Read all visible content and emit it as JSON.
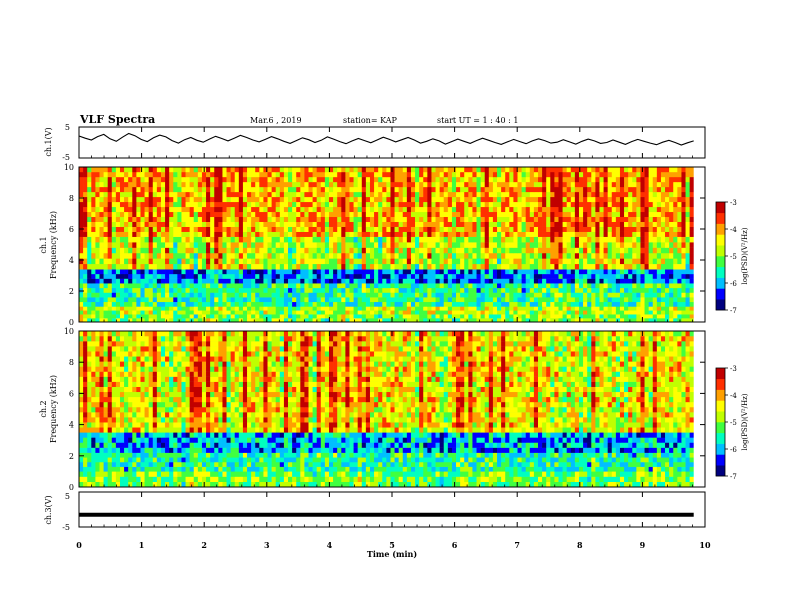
{
  "header": {
    "title": "VLF Spectra",
    "date": "Mar.6 , 2019",
    "station": "station= KAP",
    "start_ut": "start UT = 1 : 40 : 1"
  },
  "chart_data": [
    {
      "type": "line",
      "panel": "ch1-waveform",
      "ylabel": "ch.1(V)",
      "ylim": [
        -5,
        5
      ],
      "yticks": [
        "5",
        "-5"
      ],
      "xlim": [
        0,
        10
      ],
      "series": [
        {
          "values": [
            2.1,
            1.4,
            0.8,
            1.9,
            2.6,
            1.2,
            0.4,
            1.7,
            2.9,
            2.2,
            1.0,
            0.3,
            1.5,
            2.4,
            1.8,
            0.6,
            -0.2,
            0.9,
            1.6,
            0.7,
            0.1,
            1.1,
            2.0,
            1.3,
            0.5,
            1.4,
            2.3,
            1.6,
            0.8,
            0.2,
            1.0,
            1.9,
            1.2,
            0.4,
            -0.3,
            0.6,
            1.5,
            0.9,
            0.0,
            0.7,
            1.8,
            1.1,
            0.3,
            -0.4,
            0.5,
            1.3,
            0.6,
            -0.1,
            0.8,
            1.7,
            1.0,
            0.2,
            0.9,
            1.6,
            0.8,
            -0.2,
            0.4,
            1.2,
            0.5,
            -0.5,
            0.3,
            1.1,
            0.4,
            -0.3,
            0.6,
            1.4,
            0.7,
            0.0,
            -0.6,
            0.2,
            1.0,
            0.3,
            -0.4,
            0.5,
            1.2,
            0.6,
            -0.2,
            0.1,
            0.9,
            0.2,
            -0.5,
            0.4,
            1.1,
            0.5,
            -0.3,
            0.0,
            0.8,
            0.1,
            -0.6,
            0.3,
            1.0,
            0.4,
            -0.2,
            -0.7,
            0.1,
            0.7,
            0.0,
            -0.8,
            -0.1,
            0.5
          ]
        }
      ]
    },
    {
      "type": "heatmap",
      "panel": "ch1-spectrogram",
      "title": "ch.1",
      "ylabel": "Frequency (kHz)",
      "ylim": [
        0,
        10
      ],
      "yticks": [
        "0",
        "2",
        "4",
        "6",
        "8",
        "10"
      ],
      "xlim": [
        0,
        10
      ],
      "colorbar": {
        "label": "log(PSD)(V²/Hz)",
        "range": [
          -7,
          -3
        ],
        "ticks": [
          "-3",
          "-4",
          "-5",
          "-6",
          "-7"
        ]
      },
      "level_by_band_kHz": [
        {
          "f_from": 0,
          "f_to": 0.5,
          "level": -5.0
        },
        {
          "f_from": 0.5,
          "f_to": 1.0,
          "level": -4.8
        },
        {
          "f_from": 1.0,
          "f_to": 2.5,
          "level": -5.4
        },
        {
          "f_from": 2.5,
          "f_to": 3.4,
          "level": -6.2
        },
        {
          "f_from": 3.4,
          "f_to": 5.5,
          "level": -4.7
        },
        {
          "f_from": 5.5,
          "f_to": 10.0,
          "level": -4.1
        }
      ]
    },
    {
      "type": "heatmap",
      "panel": "ch2-spectrogram",
      "title": "ch.2",
      "ylabel": "Frequency (kHz)",
      "ylim": [
        0,
        10
      ],
      "yticks": [
        "0",
        "2",
        "4",
        "6",
        "8",
        "10"
      ],
      "xlim": [
        0,
        10
      ],
      "colorbar": {
        "label": "log(PSD)(V²/Hz)",
        "range": [
          -7,
          -3
        ],
        "ticks": [
          "-3",
          "-4",
          "-5",
          "-6",
          "-7"
        ]
      },
      "level_by_band_kHz": [
        {
          "f_from": 0,
          "f_to": 1.0,
          "level": -5.1
        },
        {
          "f_from": 1.0,
          "f_to": 2.2,
          "level": -5.5
        },
        {
          "f_from": 2.2,
          "f_to": 3.5,
          "level": -6.0
        },
        {
          "f_from": 3.5,
          "f_to": 10.0,
          "level": -4.4
        }
      ]
    },
    {
      "type": "line",
      "panel": "ch3-waveform",
      "ylabel": "ch.3(V)",
      "ylim": [
        -5,
        5
      ],
      "yticks": [
        "5",
        "-5"
      ],
      "xlim": [
        0,
        10
      ],
      "series": [
        {
          "values": [
            -1.5,
            -1.5
          ]
        }
      ]
    }
  ],
  "xaxis": {
    "label": "Time (min)",
    "ticks": [
      "0",
      "1",
      "2",
      "3",
      "4",
      "5",
      "6",
      "7",
      "8",
      "9",
      "10"
    ],
    "data_end": 9.82
  },
  "colors": {
    "scale": [
      "#00007f",
      "#0000ff",
      "#00bfff",
      "#00ffc0",
      "#40ff40",
      "#c0ff00",
      "#ffff00",
      "#ffa000",
      "#ff3000",
      "#c00000"
    ]
  }
}
